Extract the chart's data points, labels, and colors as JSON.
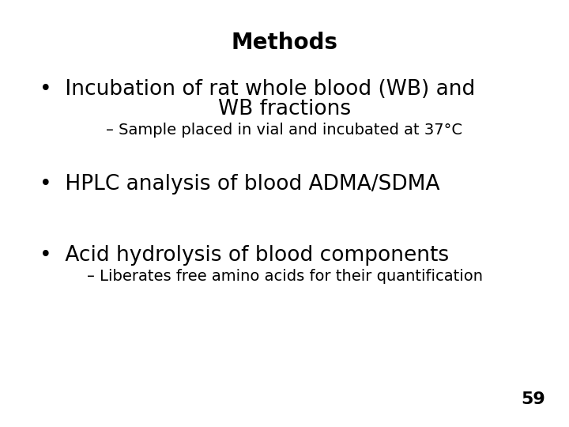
{
  "title": "Methods",
  "title_fontsize": 20,
  "title_fontweight": "bold",
  "background_color": "#ffffff",
  "text_color": "#000000",
  "bullet1_line1": "Incubation of rat whole blood (WB) and",
  "bullet1_line2": "WB fractions",
  "sub1": "– Sample placed in vial and incubated at 37°C",
  "bullet2": "HPLC analysis of blood ADMA/SDMA",
  "bullet3": "Acid hydrolysis of blood components",
  "sub3": "– Liberates free amino acids for their quantification",
  "page_number": "59",
  "bullet_char": "•",
  "bullet_fontsize": 19,
  "sub_fontsize": 14,
  "page_fontsize": 16,
  "page_fontweight": "bold",
  "font_family": "DejaVu Sans"
}
